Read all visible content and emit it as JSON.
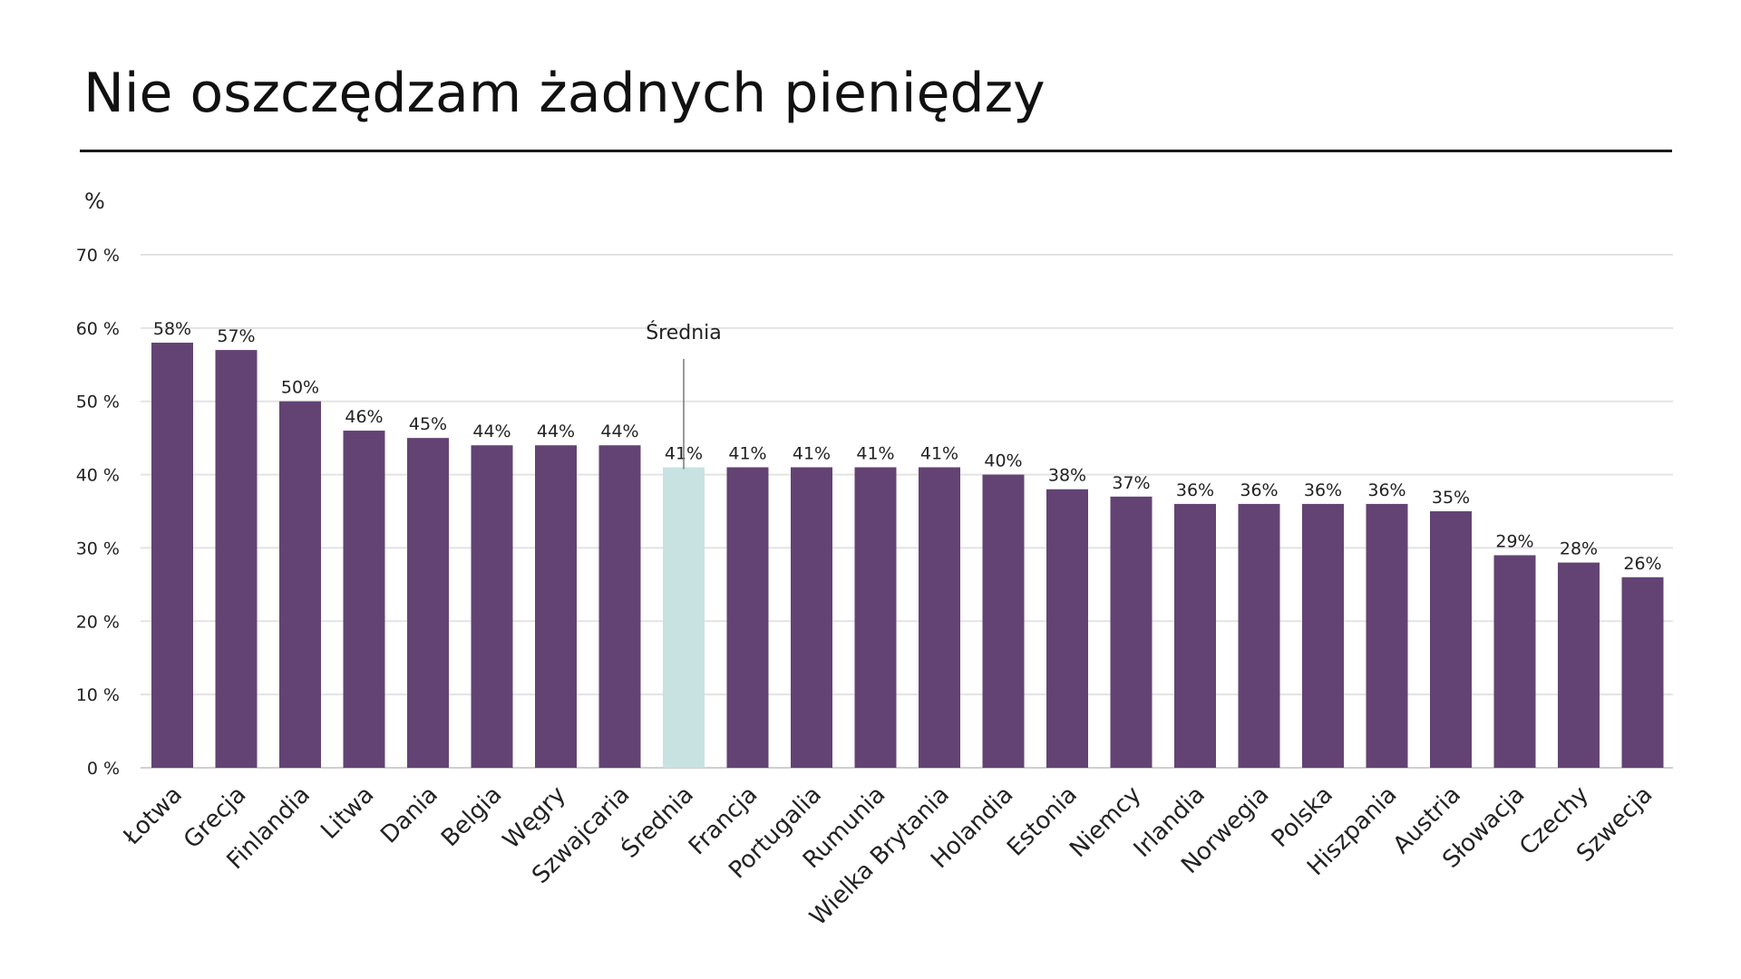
{
  "title": "Nie oszczędzam żadnych pieniędzy",
  "chart_data": {
    "type": "bar",
    "title": "Nie oszczędzam żadnych pieniędzy",
    "ylabel": "%",
    "xlabel": "",
    "ylim": [
      0,
      70
    ],
    "yticks": [
      0,
      10,
      20,
      30,
      40,
      50,
      60,
      70
    ],
    "ytick_labels": [
      "0 %",
      "10 %",
      "20 %",
      "30 %",
      "40 %",
      "50 %",
      "60 %",
      "70 %"
    ],
    "grid": true,
    "categories": [
      "Łotwa",
      "Grecja",
      "Finlandia",
      "Litwa",
      "Dania",
      "Belgia",
      "Węgry",
      "Szwajcaria",
      "Średnia",
      "Francja",
      "Portugalia",
      "Rumunia",
      "Wielka Brytania",
      "Holandia",
      "Estonia",
      "Niemcy",
      "Irlandia",
      "Norwegia",
      "Polska",
      "Hiszpania",
      "Austria",
      "Słowacja",
      "Czechy",
      "Szwecja"
    ],
    "values": [
      58,
      57,
      50,
      46,
      45,
      44,
      44,
      44,
      41,
      41,
      41,
      41,
      41,
      40,
      38,
      37,
      36,
      36,
      36,
      36,
      35,
      29,
      28,
      26
    ],
    "value_labels": [
      "58%",
      "57%",
      "50%",
      "46%",
      "45%",
      "44%",
      "44%",
      "44%",
      "41%",
      "41%",
      "41%",
      "41%",
      "41%",
      "40%",
      "38%",
      "37%",
      "36%",
      "36%",
      "36%",
      "36%",
      "35%",
      "29%",
      "28%",
      "26%"
    ],
    "highlight_category": "Średnia",
    "annotation": "Średnia",
    "colors": {
      "bar": "#634373",
      "highlight": "#c8e2e2",
      "grid": "#e3e3e3",
      "text": "#222222"
    }
  }
}
